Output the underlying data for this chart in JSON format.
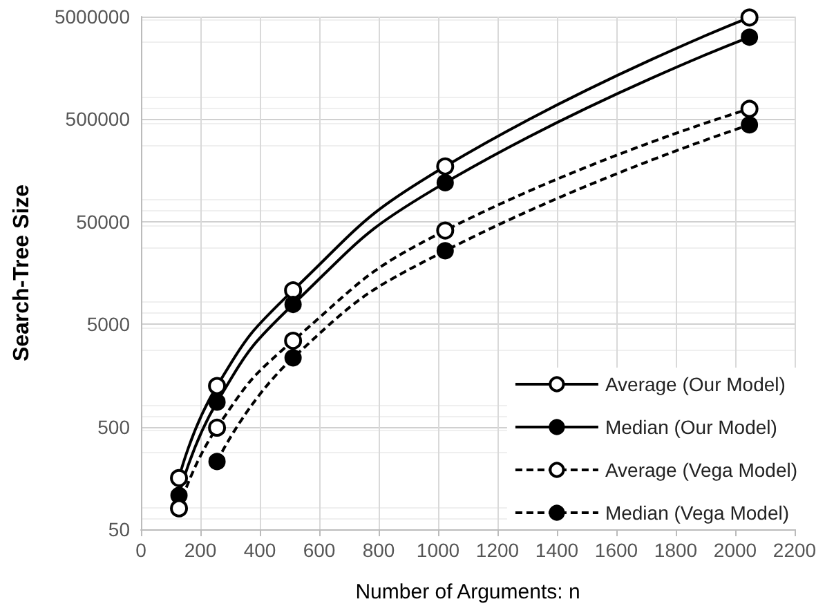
{
  "chart_data": {
    "type": "line",
    "xlabel": "Number of Arguments: n",
    "ylabel": "Search-Tree Size",
    "x": [
      128,
      256,
      512,
      1024,
      2048
    ],
    "series": [
      {
        "name": "Average (Our Model)",
        "color": "#000000",
        "marker": "emptyCircle",
        "line_style": "solid",
        "values": [
          158,
          1250,
          10700,
          173000,
          4900000
        ]
      },
      {
        "name": "Median (Our Model)",
        "color": "#000000",
        "marker": "circle",
        "line_style": "solid",
        "values": [
          107,
          870,
          7800,
          120000,
          3150000
        ]
      },
      {
        "name": "Average (Vega Model)",
        "color": "#000000",
        "marker": "emptyCircle",
        "line_style": "dashed",
        "values": [
          80,
          490,
          3450,
          41000,
          630000
        ]
      },
      {
        "name": "Median (Vega Model)",
        "color": "#000000",
        "marker": "circle",
        "line_style": "dashed",
        "values": [
          null,
          229,
          2350,
          26000,
          440000
        ]
      }
    ],
    "xlim": [
      0,
      2200
    ],
    "xticks": [
      0,
      200,
      400,
      600,
      800,
      1000,
      1200,
      1400,
      1600,
      1800,
      2000,
      2200
    ],
    "ylim": [
      50,
      5000000
    ],
    "yticks": [
      50,
      500,
      5000,
      50000,
      500000,
      5000000
    ],
    "log": "y",
    "grid": true,
    "legend": "bottom right"
  }
}
